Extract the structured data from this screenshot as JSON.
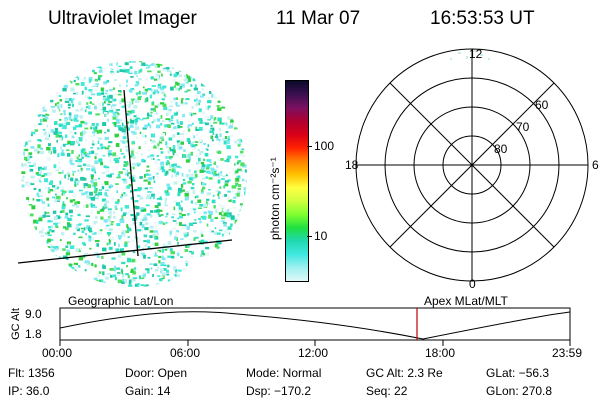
{
  "header": {
    "title": "Ultraviolet Imager",
    "date": "11 Mar 07",
    "time": "16:53:53 UT"
  },
  "colorbar": {
    "label": "photon cm⁻²s⁻¹",
    "ticks": [
      "100",
      "10"
    ],
    "colors": [
      "#0a0a2a",
      "#3a1050",
      "#7a1060",
      "#b00030",
      "#d80018",
      "#ff2000",
      "#ff8000",
      "#ffc000",
      "#ffff40",
      "#d0ff40",
      "#80ff30",
      "#20e040",
      "#20d8b0",
      "#40e8e0",
      "#a0f0f0",
      "#e0f8f8"
    ]
  },
  "polar_plot": {
    "labels_mlt": [
      "12",
      "18",
      "6",
      "0"
    ],
    "labels_mlat": [
      "60",
      "70",
      "80"
    ]
  },
  "timeline": {
    "y_axis_label": "GC Alt",
    "y_ticks": [
      "9.0",
      "1.8"
    ],
    "left_title": "Geographic Lat/Lon",
    "right_title": "Apex MLat/MLT",
    "x_ticks": [
      "00:00",
      "06:00",
      "12:00",
      "18:00",
      "23:59"
    ],
    "marker_color": "#c00000"
  },
  "info": {
    "flt": "Flt: 1356",
    "ip": "IP: 36.0",
    "door": "Door: Open",
    "gain": "Gain: 14",
    "mode": "Mode: Normal",
    "dsp": "Dsp: −170.2",
    "gcalt": "GC Alt: 2.3 Re",
    "seq": "Seq: 22",
    "glat": "GLat: −56.3",
    "glon": "GLon: 270.8"
  }
}
